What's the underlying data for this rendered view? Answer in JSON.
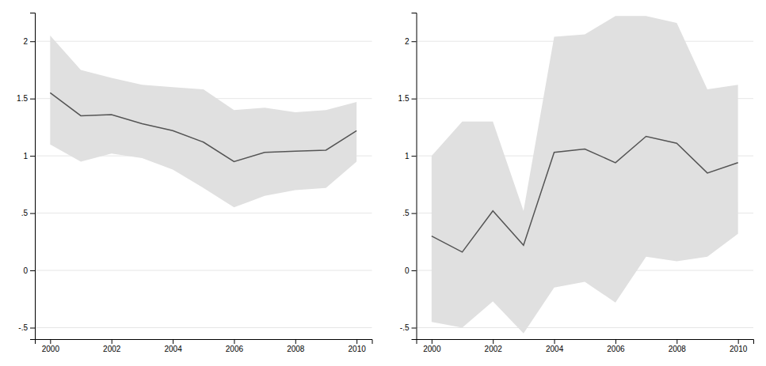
{
  "chart_data": [
    {
      "type": "line",
      "x": [
        2000,
        2001,
        2002,
        2003,
        2004,
        2005,
        2006,
        2007,
        2008,
        2009,
        2010
      ],
      "series": [
        {
          "type": "band",
          "color": "#e0e0e0",
          "upper": [
            2.05,
            1.75,
            1.68,
            1.62,
            1.6,
            1.58,
            1.4,
            1.42,
            1.38,
            1.4,
            1.47
          ],
          "lower": [
            1.1,
            0.95,
            1.02,
            0.98,
            0.88,
            0.72,
            0.55,
            0.65,
            0.7,
            0.72,
            0.95
          ]
        },
        {
          "type": "line",
          "color": "#555555",
          "values": [
            1.55,
            1.35,
            1.36,
            1.28,
            1.22,
            1.12,
            0.95,
            1.03,
            1.04,
            1.05,
            1.22
          ]
        }
      ],
      "xlim": [
        1999.5,
        2010.5
      ],
      "xticks": [
        2000,
        2002,
        2004,
        2006,
        2008,
        2010
      ],
      "ylim": [
        -0.6,
        2.25
      ],
      "yticks": [
        {
          "value": -0.5,
          "label": "-.5"
        },
        0,
        {
          "value": 0.5,
          "label": ".5"
        },
        1,
        1.5,
        2
      ],
      "grid": "y"
    },
    {
      "type": "line",
      "x": [
        2000,
        2001,
        2002,
        2003,
        2004,
        2005,
        2006,
        2007,
        2008,
        2009,
        2010
      ],
      "series": [
        {
          "type": "band",
          "color": "#e0e0e0",
          "upper": [
            1.0,
            1.3,
            1.3,
            0.52,
            2.04,
            2.06,
            2.22,
            2.22,
            2.16,
            1.58,
            1.62
          ],
          "lower": [
            -0.45,
            -0.5,
            -0.27,
            -0.55,
            -0.15,
            -0.1,
            -0.28,
            0.12,
            0.08,
            0.12,
            0.32
          ]
        },
        {
          "type": "line",
          "color": "#555555",
          "values": [
            0.3,
            0.16,
            0.52,
            0.22,
            1.03,
            1.06,
            0.94,
            1.17,
            1.11,
            0.85,
            0.94
          ]
        }
      ],
      "xlim": [
        1999.5,
        2010.5
      ],
      "xticks": [
        2000,
        2002,
        2004,
        2006,
        2008,
        2010
      ],
      "ylim": [
        -0.6,
        2.25
      ],
      "yticks": [
        {
          "value": -0.5,
          "label": "-.5"
        },
        0,
        {
          "value": 0.5,
          "label": ".5"
        },
        1,
        1.5,
        2
      ],
      "grid": "y"
    }
  ]
}
